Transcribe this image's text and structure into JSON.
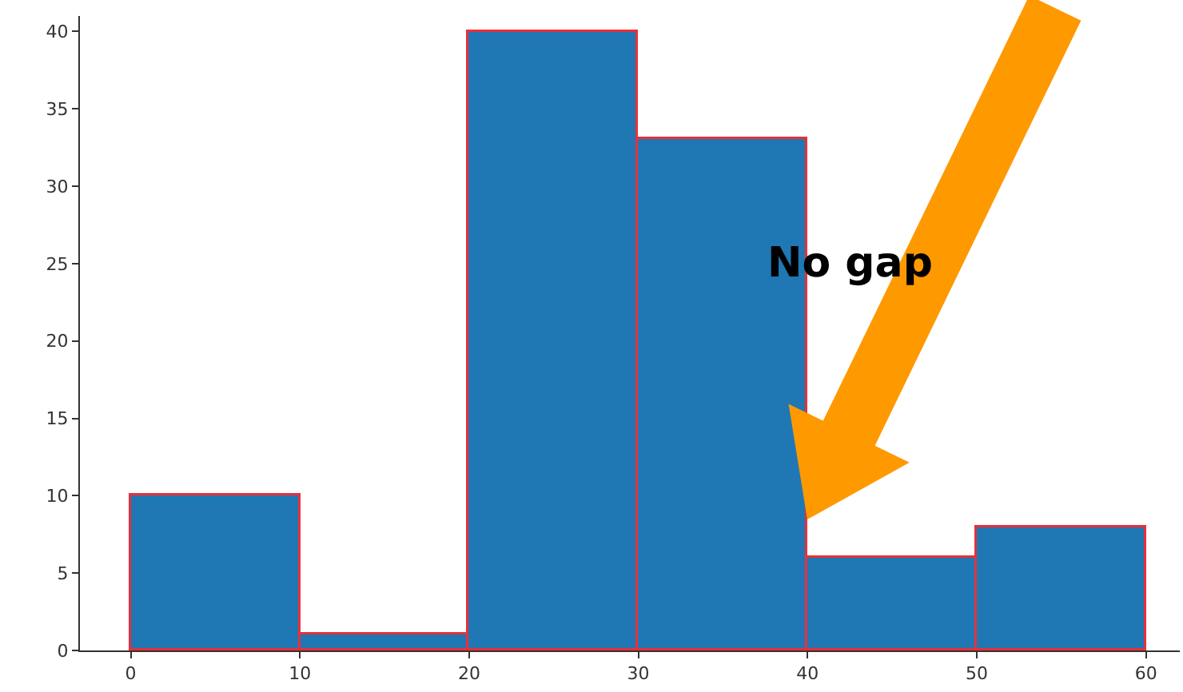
{
  "chart_data": {
    "type": "histogram",
    "bins": [
      0,
      10,
      20,
      30,
      40,
      50,
      60
    ],
    "values": [
      10,
      1,
      40,
      33,
      6,
      8
    ],
    "color": "#1f77b4",
    "xlim": [
      -3,
      62
    ],
    "xticks": [
      0,
      10,
      20,
      30,
      40,
      50,
      60
    ],
    "ylim": [
      0,
      41
    ],
    "yticks": [
      0,
      5,
      10,
      15,
      20,
      25,
      30,
      35,
      40
    ],
    "grid": false,
    "legend": false,
    "annotations": [
      "No gap"
    ]
  }
}
